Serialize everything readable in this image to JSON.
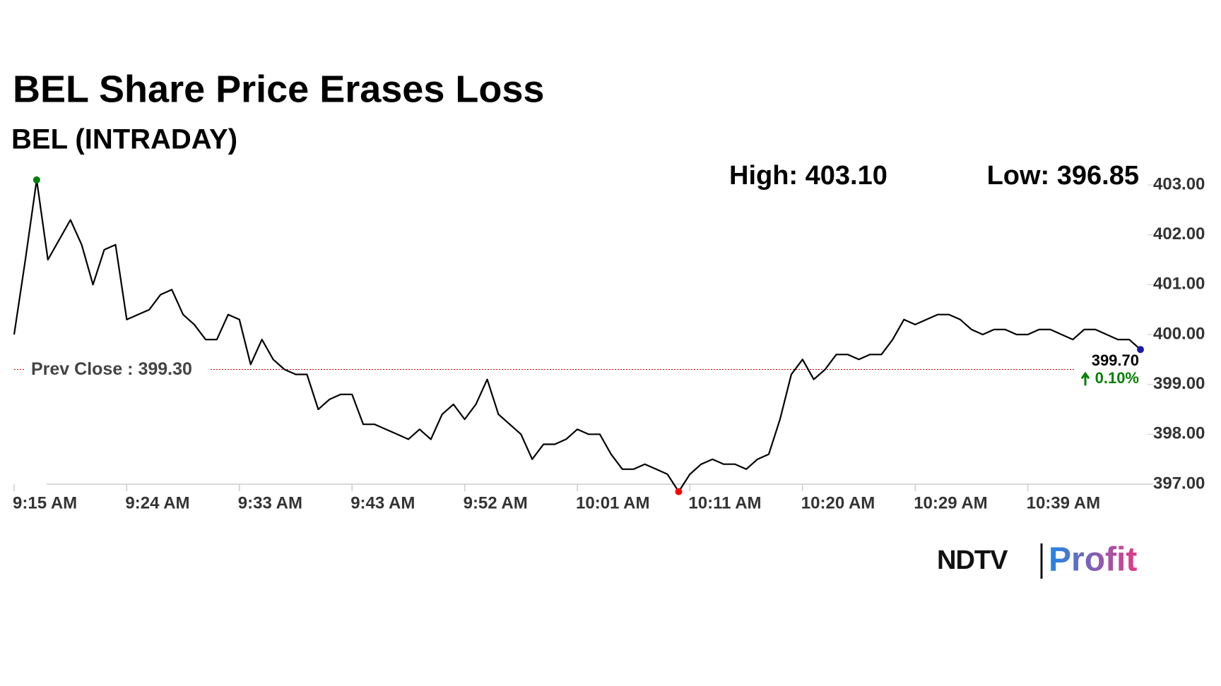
{
  "chart_data": {
    "type": "line",
    "title": "BEL Share Price Erases Loss",
    "subtitle": "BEL (INTRADAY)",
    "high_label": "High: 403.10",
    "low_label": "Low: 396.85",
    "prev_close": 399.3,
    "prev_close_label": "Prev Close : 399.30",
    "last_label": "399.70",
    "change_label": "0.10%",
    "brand": [
      "NDTV",
      "Profit"
    ],
    "categories": [
      "9:15 AM",
      null,
      null,
      null,
      null,
      null,
      null,
      null,
      null,
      null,
      "9:24 AM",
      null,
      null,
      null,
      null,
      null,
      null,
      null,
      null,
      null,
      "9:33 AM",
      null,
      null,
      null,
      null,
      null,
      null,
      null,
      null,
      null,
      "9:43 AM",
      null,
      null,
      null,
      null,
      null,
      null,
      null,
      null,
      null,
      "9:52 AM",
      null,
      null,
      null,
      null,
      null,
      null,
      null,
      null,
      null,
      "10:01 AM",
      null,
      null,
      null,
      null,
      null,
      null,
      null,
      null,
      null,
      "10:11 AM",
      null,
      null,
      null,
      null,
      null,
      null,
      null,
      null,
      null,
      "10:20 AM",
      null,
      null,
      null,
      null,
      null,
      null,
      null,
      null,
      null,
      "10:29 AM",
      null,
      null,
      null,
      null,
      null,
      null,
      null,
      null,
      null,
      "10:39 AM",
      null,
      null,
      null,
      null,
      null,
      null,
      null,
      null,
      null,
      null
    ],
    "series": [
      {
        "name": "BEL",
        "color": "#000000",
        "values": [
          400.0,
          401.5,
          403.1,
          401.5,
          401.9,
          402.3,
          401.8,
          401.0,
          401.7,
          401.8,
          400.3,
          400.4,
          400.5,
          400.8,
          400.9,
          400.4,
          400.2,
          399.9,
          399.9,
          400.4,
          400.3,
          399.4,
          399.9,
          399.5,
          399.3,
          399.2,
          399.2,
          398.5,
          398.7,
          398.8,
          398.8,
          398.2,
          398.2,
          398.1,
          398.0,
          397.9,
          398.1,
          397.9,
          398.4,
          398.6,
          398.3,
          398.6,
          399.1,
          398.4,
          398.2,
          398.0,
          397.5,
          397.8,
          397.8,
          397.9,
          398.1,
          398.0,
          398.0,
          397.6,
          397.3,
          397.3,
          397.4,
          397.3,
          397.2,
          396.85,
          397.2,
          397.4,
          397.5,
          397.4,
          397.4,
          397.3,
          397.5,
          397.6,
          398.3,
          399.2,
          399.5,
          399.1,
          399.3,
          399.6,
          399.6,
          399.5,
          399.6,
          399.6,
          399.9,
          400.3,
          400.2,
          400.3,
          400.4,
          400.4,
          400.3,
          400.1,
          400.0,
          400.1,
          400.1,
          400.0,
          400.0,
          400.1,
          400.1,
          400.0,
          399.9,
          400.1,
          400.1,
          400.0,
          399.9,
          399.9,
          399.7
        ]
      }
    ],
    "marker_colors": {
      "high": "#008000",
      "low": "#ff0000",
      "last": "#1a1aa6"
    },
    "prev_close_color": "#cc0000",
    "ylim": [
      397,
      403
    ],
    "yticks": [
      {
        "value": 397,
        "label": "397.00"
      },
      {
        "value": 398,
        "label": "398.00"
      },
      {
        "value": 399,
        "label": "399.00"
      },
      {
        "value": 400,
        "label": "400.00"
      },
      {
        "value": 401,
        "label": "401.00"
      },
      {
        "value": 402,
        "label": "402.00"
      },
      {
        "value": 403,
        "label": "403.00"
      }
    ]
  }
}
